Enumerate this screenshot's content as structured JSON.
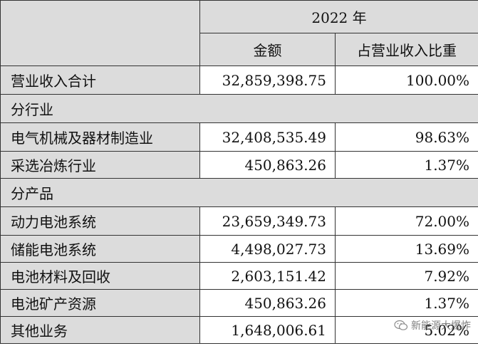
{
  "header": {
    "year": "2022 年",
    "amount": "金额",
    "ratio": "占营业收入比重"
  },
  "total": {
    "label": "营业收入合计",
    "amount": "32,859,398.75",
    "ratio": "100.00%"
  },
  "sections": [
    {
      "title": "分行业",
      "rows": [
        {
          "label": "电气机械及器材制造业",
          "amount": "32,408,535.49",
          "ratio": "98.63%"
        },
        {
          "label": "采选冶炼行业",
          "amount": "450,863.26",
          "ratio": "1.37%"
        }
      ]
    },
    {
      "title": "分产品",
      "rows": [
        {
          "label": "动力电池系统",
          "amount": "23,659,349.73",
          "ratio": "72.00%"
        },
        {
          "label": "储能电池系统",
          "amount": "4,498,027.73",
          "ratio": "13.69%"
        },
        {
          "label": "电池材料及回收",
          "amount": "2,603,151.42",
          "ratio": "7.92%"
        },
        {
          "label": "电池矿产资源",
          "amount": "450,863.26",
          "ratio": "1.37%"
        },
        {
          "label": "其他业务",
          "amount": "1,648,006.61",
          "ratio": "5.02%"
        }
      ]
    }
  ],
  "watermark": {
    "text": "新能源大爆炸",
    "icon": "wechat-icon"
  }
}
